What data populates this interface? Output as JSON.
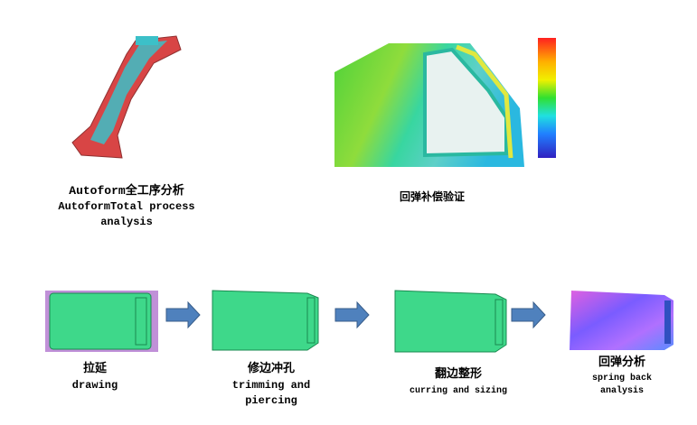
{
  "top": [
    {
      "lines": [
        "Autoform全工序分析",
        "AutoformTotal process",
        "analysis"
      ]
    },
    {
      "lines": [
        "回弹补偿验证"
      ]
    }
  ],
  "steps": [
    {
      "lines": [
        "拉延",
        "drawing"
      ]
    },
    {
      "lines": [
        "修边冲孔",
        "trimming and",
        "piercing"
      ]
    },
    {
      "lines": [
        "翻边整形",
        "curring and sizing"
      ]
    },
    {
      "lines": [
        "回弹分析",
        "spring back",
        "analysis"
      ]
    }
  ]
}
